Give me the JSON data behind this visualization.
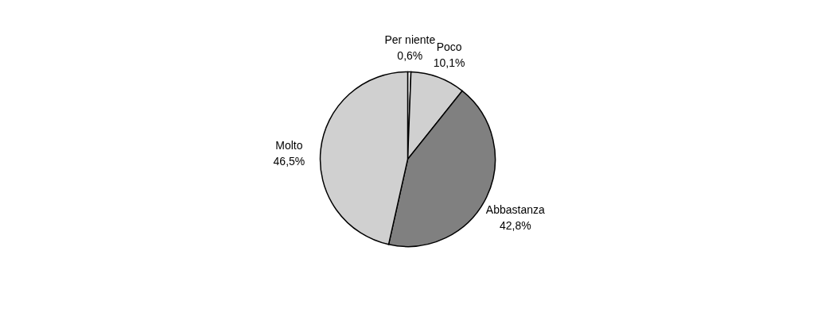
{
  "chart_data": {
    "type": "pie",
    "categories": [
      "Per niente",
      "Poco",
      "Abbastanza",
      "Molto"
    ],
    "values": [
      0.6,
      10.1,
      42.8,
      46.5
    ],
    "colors": [
      "#ffffff",
      "#d0d0d0",
      "#808080",
      "#d0d0d0"
    ],
    "value_labels": [
      "0,6%",
      "10,1%",
      "42,8%",
      "46,5%"
    ],
    "legend": false
  }
}
